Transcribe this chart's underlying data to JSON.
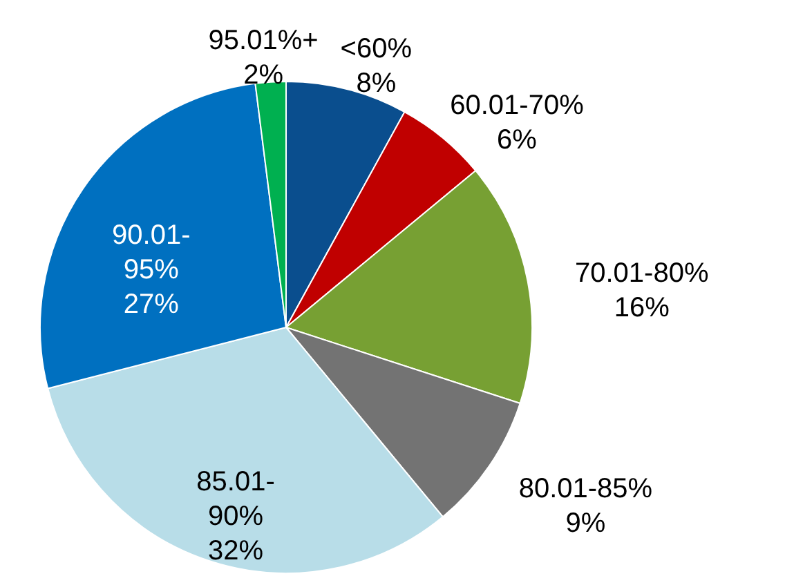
{
  "chart_data": {
    "type": "pie",
    "categories": [
      "<60%",
      "60.01-70%",
      "70.01-80%",
      "80.01-85%",
      "85.01-90%",
      "90.01-95%",
      "95.01%+"
    ],
    "values": [
      8,
      6,
      16,
      9,
      32,
      27,
      2
    ],
    "value_labels": [
      "8%",
      "6%",
      "16%",
      "9%",
      "32%",
      "27%",
      "2%"
    ],
    "colors": [
      "#0a4e8e",
      "#c00000",
      "#77a033",
      "#737373",
      "#b8dde8",
      "#0070c0",
      "#00b050"
    ]
  }
}
